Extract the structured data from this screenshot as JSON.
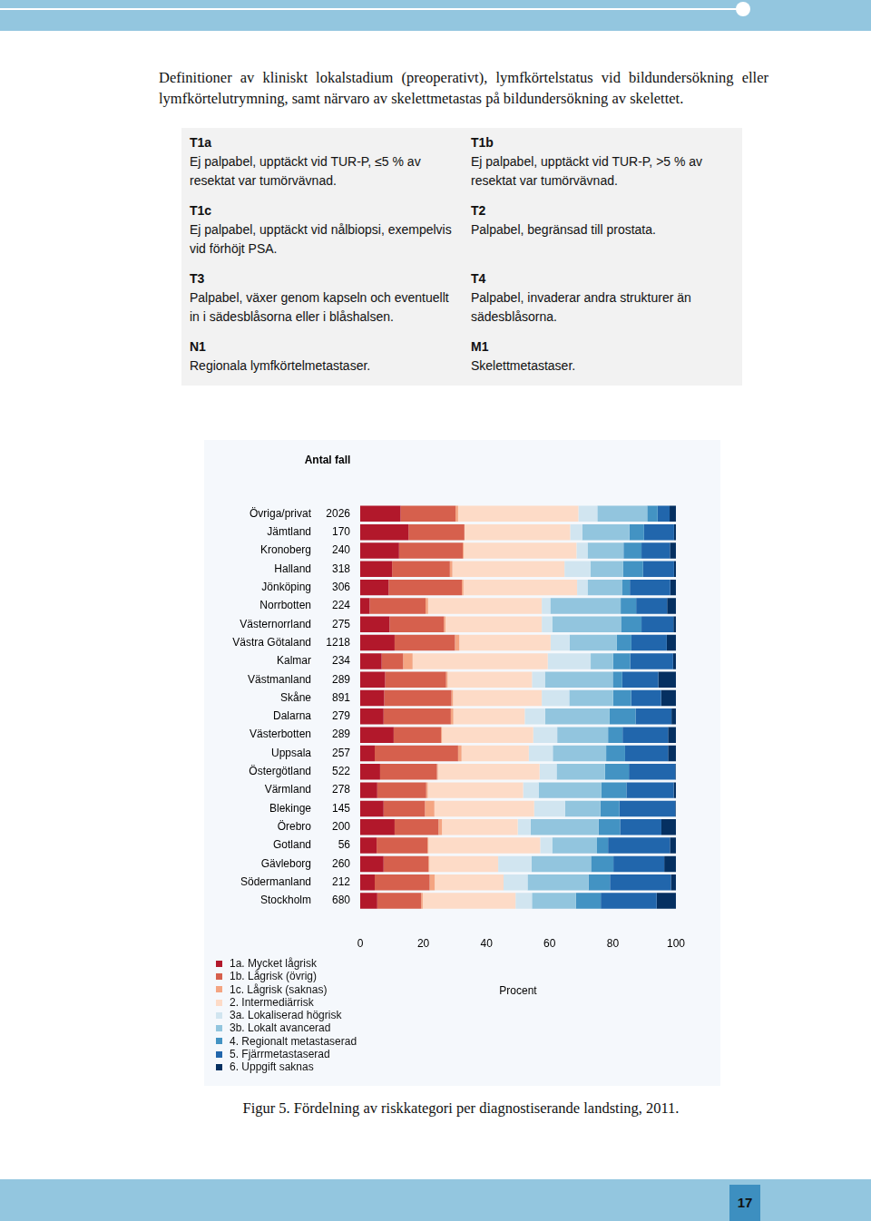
{
  "intro": "Definitioner av kliniskt lokalstadium (preoperativt), lymfkörtelstatus vid bildundersökning eller lymfkörtelutrymning, samt närvaro av skelettmetastas på bildundersökning av skelettet.",
  "definitions": [
    {
      "term": "T1a",
      "text": "Ej palpabel, upptäckt vid TUR-P, ≤5 % av resektat var tumörvävnad."
    },
    {
      "term": "T1b",
      "text": "Ej palpabel, upptäckt vid TUR-P, >5 % av resektat var tumörvävnad."
    },
    {
      "term": "T1c",
      "text": "Ej palpabel, upptäckt vid nålbiopsi, exempelvis vid förhöjt PSA."
    },
    {
      "term": "T2",
      "text": "Palpabel, begränsad till prostata."
    },
    {
      "term": "T3",
      "text": "Palpabel, växer genom kapseln och eventuellt in i sädesblåsorna eller i blåshalsen."
    },
    {
      "term": "T4",
      "text": "Palpabel, invaderar andra strukturer än sädesblåsorna."
    },
    {
      "term": "N1",
      "text": "Regionala lymfkörtelmetastaser."
    },
    {
      "term": "M1",
      "text": "Skelettmetastaser."
    }
  ],
  "chart_data": {
    "type": "bar",
    "orientation": "horizontal",
    "stacked": true,
    "grid": false,
    "legend": "bottom-left",
    "categories": [
      "Övriga/privat",
      "Jämtland",
      "Kronoberg",
      "Halland",
      "Jönköping",
      "Norrbotten",
      "Västernorrland",
      "Västra Götaland",
      "Kalmar",
      "Västmanland",
      "Skåne",
      "Dalarna",
      "Västerbotten",
      "Uppsala",
      "Östergötland",
      "Värmland",
      "Blekinge",
      "Örebro",
      "Gotland",
      "Gävleborg",
      "Södermanland",
      "Stockholm"
    ],
    "counts_label": "Antal fall",
    "counts": [
      2026,
      170,
      240,
      318,
      306,
      224,
      275,
      1218,
      234,
      289,
      891,
      279,
      289,
      257,
      522,
      278,
      145,
      200,
      56,
      260,
      212,
      680
    ],
    "xlim": [
      0,
      100
    ],
    "xticks": [
      0,
      20,
      40,
      60,
      80,
      100
    ],
    "xlabel": "Procent",
    "series": [
      {
        "name": "1a. Mycket lågrisk",
        "color": "#b2182b",
        "values": [
          12.8,
          15.3,
          12.3,
          10.1,
          9.0,
          3.0,
          9.3,
          10.9,
          6.8,
          7.9,
          7.6,
          7.4,
          10.6,
          4.6,
          6.3,
          5.4,
          7.4,
          10.9,
          5.2,
          7.4,
          4.6,
          5.4
        ]
      },
      {
        "name": "1b. Lågrisk (övrig)",
        "color": "#d6604d",
        "values": [
          17.4,
          17.7,
          20.2,
          18.3,
          23.2,
          17.7,
          17.2,
          19.1,
          6.8,
          19.3,
          21.3,
          21.3,
          15.0,
          26.4,
          18.0,
          15.5,
          13.1,
          13.9,
          16.1,
          14.2,
          17.4,
          13.9
        ]
      },
      {
        "name": "1c. Lågrisk (saknas)",
        "color": "#f4a582",
        "values": [
          0.8,
          0,
          0.3,
          0.8,
          0.5,
          0.8,
          0.5,
          1.4,
          3.0,
          0.5,
          0.5,
          0.8,
          0.3,
          1.1,
          0.3,
          0.5,
          3.0,
          1.1,
          0.3,
          0.3,
          1.6,
          0.5
        ]
      },
      {
        "name": "2. Intermediärrisk",
        "color": "#fddbc7",
        "values": [
          38.1,
          33.5,
          35.7,
          35.5,
          36.0,
          36.0,
          30.5,
          28.9,
          42.8,
          26.7,
          28.1,
          22.6,
          28.9,
          21.3,
          32.2,
          30.2,
          31.6,
          24.0,
          35.4,
          21.8,
          21.8,
          29.4
        ]
      },
      {
        "name": "3a. Lokaliserad högrisk",
        "color": "#d1e5f0",
        "values": [
          6.0,
          3.8,
          3.5,
          8.2,
          3.3,
          2.7,
          3.3,
          6.0,
          13.6,
          4.1,
          8.7,
          6.5,
          7.6,
          7.6,
          5.4,
          4.9,
          9.8,
          4.1,
          3.8,
          10.6,
          7.6,
          5.2
        ]
      },
      {
        "name": "3b. Lokalt avancerad",
        "color": "#92c5de",
        "values": [
          15.8,
          15.0,
          11.4,
          10.4,
          10.9,
          22.3,
          21.8,
          15.0,
          7.1,
          21.5,
          13.9,
          20.4,
          16.1,
          16.9,
          15.3,
          19.9,
          11.2,
          21.5,
          14.2,
          18.8,
          19.3,
          13.9
        ]
      },
      {
        "name": "4. Regionalt metastaserad",
        "color": "#4393c3",
        "values": [
          3.3,
          4.6,
          5.7,
          6.3,
          2.5,
          4.9,
          6.5,
          4.6,
          5.4,
          3.0,
          5.7,
          8.2,
          4.6,
          6.0,
          7.6,
          7.9,
          6.0,
          6.8,
          3.5,
          7.1,
          6.8,
          7.9
        ]
      },
      {
        "name": "5. Fjärrmetastaserad",
        "color": "#2166ac",
        "values": [
          3.8,
          9.5,
          9.0,
          9.8,
          12.8,
          9.8,
          10.1,
          11.2,
          13.6,
          11.4,
          9.5,
          11.4,
          14.4,
          13.6,
          14.7,
          15.0,
          17.7,
          13.1,
          19.6,
          16.1,
          19.3,
          17.7
        ]
      },
      {
        "name": "6. Uppgift saknas",
        "color": "#053061",
        "values": [
          2.0,
          0.6,
          1.9,
          0.6,
          1.8,
          2.8,
          0.8,
          2.9,
          0.9,
          5.6,
          4.7,
          1.4,
          2.5,
          2.5,
          0.2,
          0.7,
          0.2,
          4.6,
          1.9,
          3.7,
          1.6,
          6.1
        ]
      }
    ]
  },
  "caption": "Figur 5. Fördelning av riskkategori per diagnostiserande landsting, 2011.",
  "page_number": 17
}
